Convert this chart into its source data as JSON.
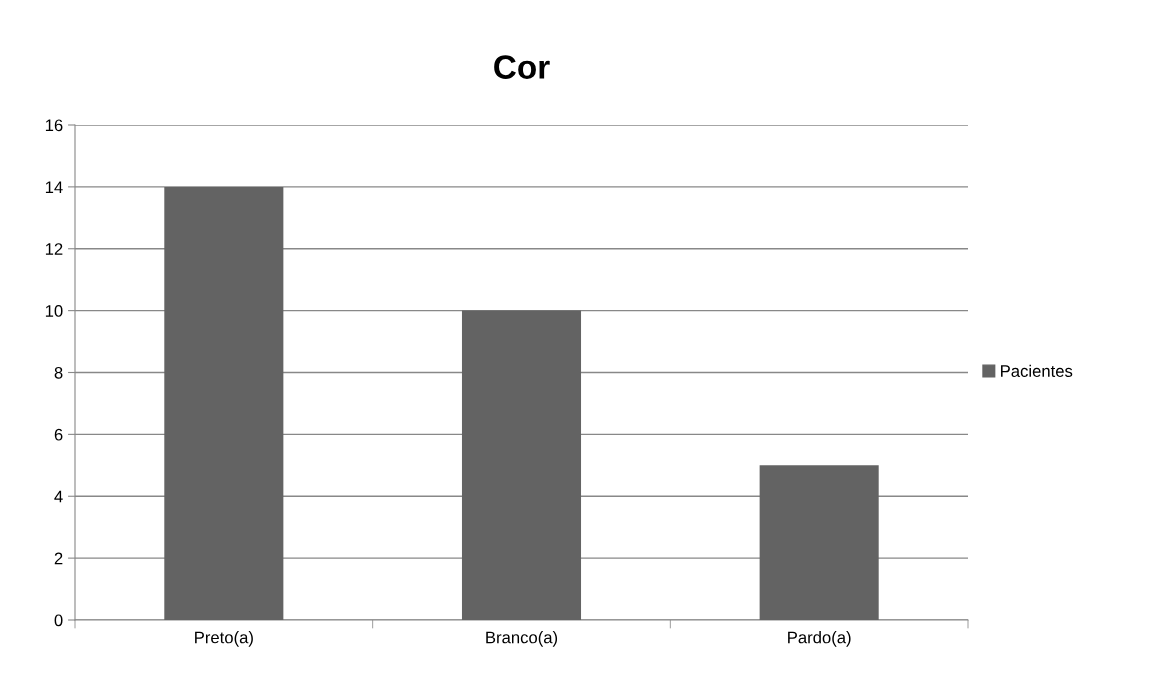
{
  "chart_data": {
    "type": "bar",
    "title": "Cor",
    "categories": [
      "Preto(a)",
      "Branco(a)",
      "Pardo(a)"
    ],
    "series": [
      {
        "name": "Pacientes",
        "color": "#636363",
        "values": [
          14,
          10,
          5
        ]
      }
    ],
    "ylim": [
      0,
      16
    ],
    "yticks": [
      0,
      2,
      4,
      6,
      8,
      10,
      12,
      14,
      16
    ],
    "grid": "y",
    "legend": "right"
  }
}
